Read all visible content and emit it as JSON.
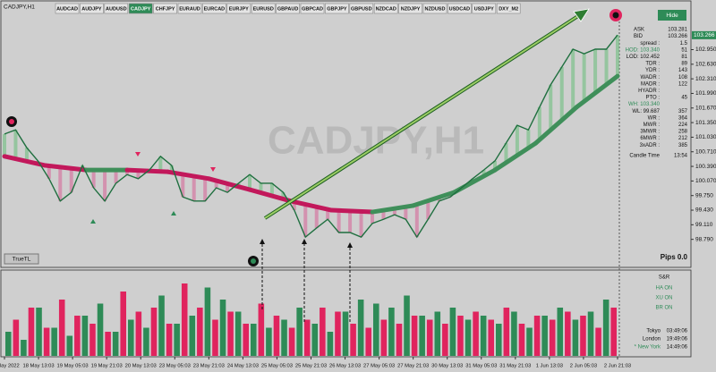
{
  "window": {
    "title": "CADJPY,H1"
  },
  "toolbar": {
    "active": 3,
    "active_color": "#2e8b57",
    "buttons": [
      "AUDCAD",
      "AUDJPY",
      "AUDUSD",
      "CADJPY",
      "CHFJPY",
      "EURAUD",
      "EURCAD",
      "EURJPY",
      "EURUSD",
      "GBPAUD",
      "GBPCAD",
      "GBPJPY",
      "GBPUSD",
      "NZDCAD",
      "NZDJPY",
      "NZDUSD",
      "USDCAD",
      "USDJPY",
      "DXY_M2"
    ]
  },
  "chart_data": {
    "type": "line",
    "watermark": "CADJPY,H1",
    "ylim": [
      98.45,
      103.45
    ],
    "yticks": [
      {
        "value": 102.95,
        "label": "102.950"
      },
      {
        "value": 102.63,
        "label": "102.630"
      },
      {
        "value": 102.31,
        "label": "102.310"
      },
      {
        "value": 101.99,
        "label": "101.990"
      },
      {
        "value": 101.67,
        "label": "101.670"
      },
      {
        "value": 101.35,
        "label": "101.350"
      },
      {
        "value": 101.03,
        "label": "101.030"
      },
      {
        "value": 100.71,
        "label": "100.710"
      },
      {
        "value": 100.39,
        "label": "100.390"
      },
      {
        "value": 100.07,
        "label": "100.070"
      },
      {
        "value": 99.75,
        "label": "99.750"
      },
      {
        "value": 99.43,
        "label": "99.430"
      },
      {
        "value": 99.11,
        "label": "99.110"
      },
      {
        "value": 98.79,
        "label": "98.790"
      }
    ],
    "last_price": 103.266,
    "last_price_color": "#2e8b57",
    "categories": [
      "17 May 2022",
      "18 May 13:03",
      "19 May 05:03",
      "19 May 21:03",
      "20 May 13:03",
      "23 May 05:03",
      "23 May 21:03",
      "24 May 13:03",
      "25 May 05:03",
      "25 May 21:03",
      "26 May 13:03",
      "27 May 05:03",
      "27 May 21:03",
      "30 May 13:03",
      "31 May 05:03",
      "31 May 21:03",
      "1 Jun 13:03",
      "2 Jun 05:03",
      "2 Jun 21:03"
    ],
    "price": {
      "color": "#1f6f3f",
      "values": [
        101.1,
        101.19,
        100.8,
        100.51,
        100.12,
        99.63,
        99.82,
        100.41,
        99.92,
        99.63,
        100.02,
        100.21,
        100.12,
        100.31,
        100.61,
        100.41,
        99.72,
        99.63,
        99.63,
        99.92,
        99.82,
        100.02,
        100.21,
        100.02,
        100.02,
        99.82,
        99.43,
        98.84,
        99.04,
        99.23,
        98.94,
        98.94,
        98.84,
        99.14,
        99.23,
        99.33,
        99.23,
        98.84,
        99.23,
        99.63,
        99.72,
        99.92,
        100.12,
        100.31,
        100.51,
        100.9,
        101.29,
        101.19,
        101.69,
        102.18,
        102.57,
        102.96,
        102.86,
        102.96,
        102.96,
        103.27
      ]
    },
    "ma": {
      "up_color": "#3f8f5a",
      "down_color": "#c2185b",
      "values": [
        100.61,
        100.41,
        100.31,
        100.31,
        100.27,
        100.12,
        99.88,
        99.63,
        99.43,
        99.39,
        99.53,
        99.82,
        100.31,
        100.9,
        101.69,
        102.37
      ]
    },
    "fill": {
      "above_color": "#6fbf80",
      "below_color": "#d66a9a"
    },
    "volume": {
      "series": [
        {
          "color": "#2e8b57",
          "values": [
            30,
            20,
            60,
            35,
            25,
            50,
            65,
            30,
            45,
            35,
            75,
            40,
            50,
            85,
            70,
            55,
            40,
            35,
            45,
            60,
            40,
            30,
            55,
            70,
            65,
            60,
            75,
            50,
            55,
            60,
            45,
            50,
            40,
            55,
            35,
            50,
            60,
            45,
            55,
            70
          ]
        },
        {
          "color": "#e0245e",
          "values": [
            45,
            60,
            35,
            70,
            50,
            40,
            30,
            80,
            55,
            60,
            40,
            90,
            60,
            45,
            55,
            40,
            65,
            50,
            35,
            45,
            60,
            55,
            40,
            35,
            45,
            40,
            50,
            45,
            40,
            50,
            55,
            45,
            60,
            40,
            50,
            45,
            55,
            50,
            35,
            60
          ]
        }
      ]
    }
  },
  "info_panel": {
    "hide": "Hide",
    "rows": [
      {
        "label": "ASK",
        "value": "103.281"
      },
      {
        "label": "BID",
        "value": "103.266"
      },
      {
        "label": "spread :",
        "value": "1.5"
      },
      {
        "label": "HOD: 103.340",
        "value": "51"
      },
      {
        "label": "LOD: 102.452",
        "value": "81"
      },
      {
        "label": "TDR :",
        "value": "89"
      },
      {
        "label": "YDR :",
        "value": "143"
      },
      {
        "label": "WADR :",
        "value": "108"
      },
      {
        "label": "MADR :",
        "value": "122"
      },
      {
        "label": "HYADR :"
      },
      {
        "label": "PTO :",
        "value": "45"
      },
      {
        "label": "WH: 103.340"
      },
      {
        "label": "WL: 99.687",
        "value": "357"
      },
      {
        "label": "WR :",
        "value": "364"
      },
      {
        "label": "MWR :",
        "value": "224"
      },
      {
        "label": "3MWR :",
        "value": "258"
      },
      {
        "label": "6MWR :",
        "value": "212"
      },
      {
        "label": "3xADR :",
        "value": "385"
      },
      {
        "label": "Candle Time",
        "value": "13:54"
      }
    ]
  },
  "indicators": {
    "trendline": "TrueTL",
    "pips": "Pips 0.0",
    "sr": "S&R",
    "toggles": [
      "HA ON",
      "XU ON",
      "BR ON"
    ],
    "sessions": [
      {
        "name": "Tokyo",
        "time": "03:49:06"
      },
      {
        "name": "London",
        "time": "19:49:06"
      },
      {
        "name": "* New York",
        "time": "14:49:06"
      }
    ]
  }
}
